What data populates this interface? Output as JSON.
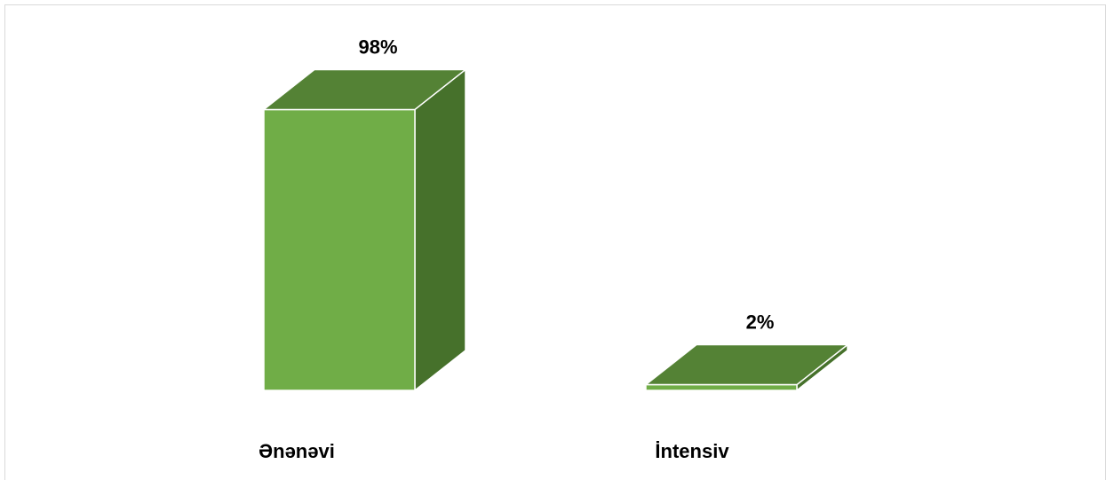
{
  "chart_data": {
    "type": "bar",
    "style": "3d-column",
    "categories": [
      "Ənənəvi",
      "İntensiv"
    ],
    "values": [
      98,
      2
    ],
    "value_labels": [
      "98%",
      "2%"
    ],
    "unit": "%",
    "ylim": [
      0,
      100
    ],
    "grid": false,
    "legend": "none",
    "colors": {
      "front": "#70ad47",
      "top": "#548235",
      "side": "#46712b",
      "edge": "#ffffff"
    }
  }
}
